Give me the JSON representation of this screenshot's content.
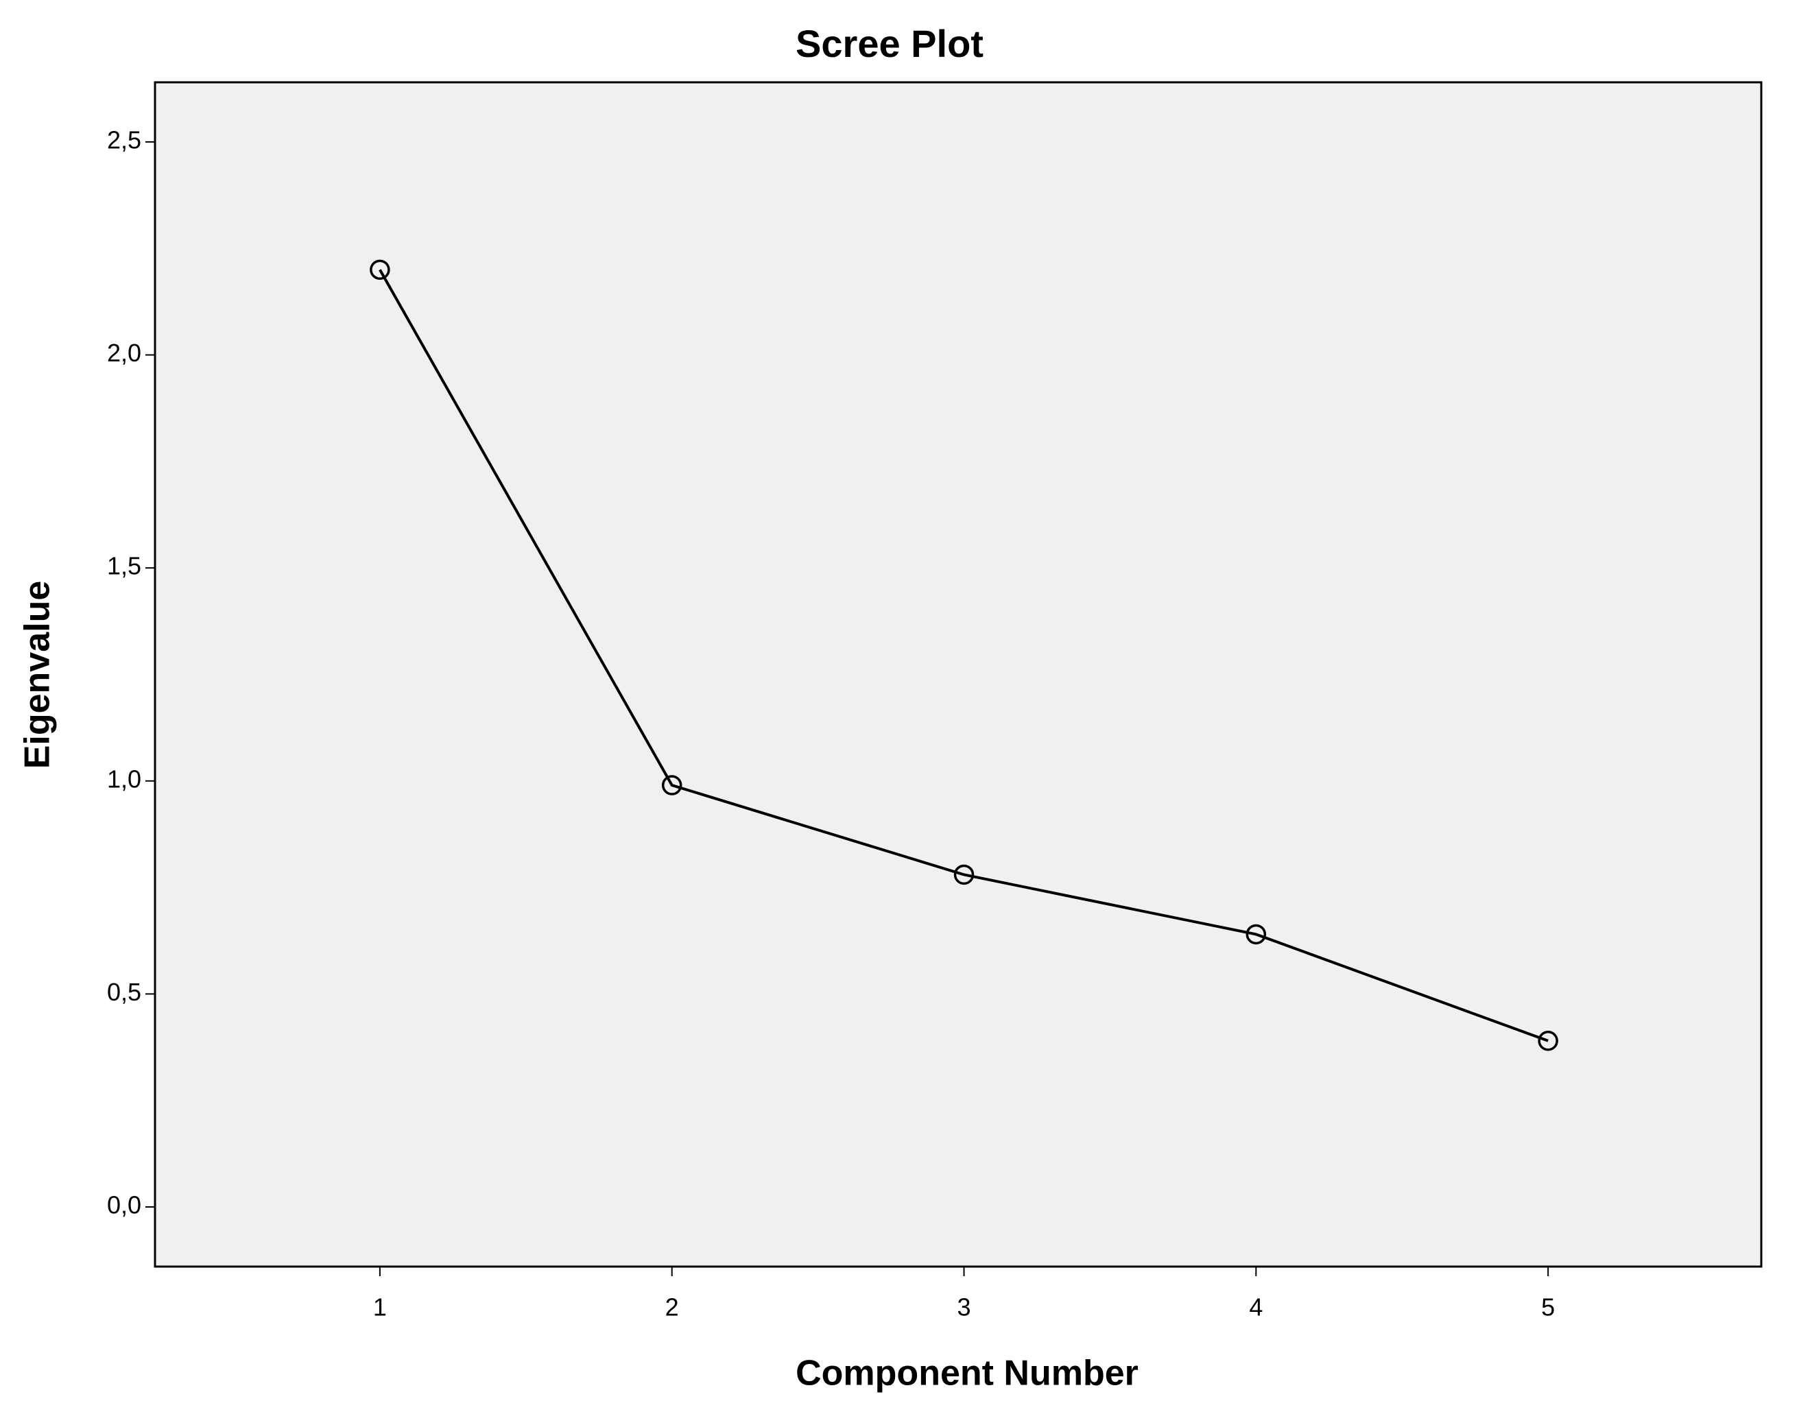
{
  "chart_data": {
    "type": "line",
    "title": "Scree Plot",
    "x_label": "Component Number",
    "y_label": "Eigenvalue",
    "x": [
      1,
      2,
      3,
      4,
      5
    ],
    "values": [
      2.2,
      0.99,
      0.78,
      0.64,
      0.39
    ],
    "color": "#000000",
    "marker": "open-circle",
    "xlim": [
      0.23,
      5.73
    ],
    "xticks": [
      1,
      2,
      3,
      4,
      5
    ],
    "ylim": [
      -0.14,
      2.64
    ],
    "yticks": [
      {
        "value": 0,
        "label": "0,0"
      },
      {
        "value": 0.5,
        "label": "0,5"
      },
      {
        "value": 1,
        "label": "1,0"
      },
      {
        "value": 1.5,
        "label": "1,5"
      },
      {
        "value": 2,
        "label": "2,0"
      },
      {
        "value": 2.5,
        "label": "2,5"
      }
    ],
    "plot_background": "#f0f0f0",
    "grid": false
  }
}
